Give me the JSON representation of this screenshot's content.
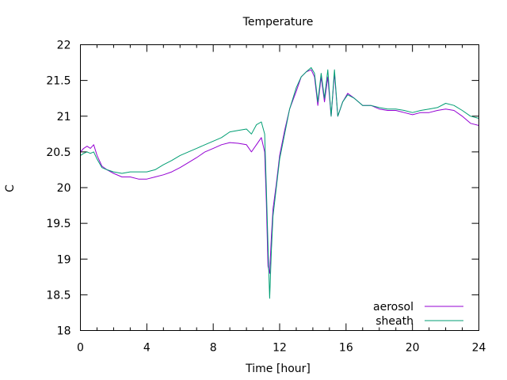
{
  "chart_data": {
    "type": "line",
    "title": "Temperature",
    "xlabel": "Time [hour]",
    "ylabel": "C",
    "xlim": [
      0,
      24
    ],
    "ylim": [
      18,
      22
    ],
    "x_ticks": [
      0,
      4,
      8,
      12,
      16,
      20,
      24
    ],
    "y_ticks": [
      18,
      18.5,
      19,
      19.5,
      20,
      20.5,
      21,
      21.5,
      22
    ],
    "x_tick_labels": [
      "0",
      "4",
      "8",
      "12",
      "16",
      "20",
      "24"
    ],
    "y_tick_labels": [
      "18",
      "18.5",
      "19",
      "19.5",
      "20",
      "20.5",
      "21",
      "21.5",
      "22"
    ],
    "grid": false,
    "legend_position": "bottom-right",
    "series": [
      {
        "name": "aerosol",
        "color": "#9400d3",
        "x": [
          0,
          0.2,
          0.4,
          0.6,
          0.8,
          1.0,
          1.3,
          1.6,
          2.0,
          2.5,
          3.0,
          3.5,
          4.0,
          4.5,
          5.0,
          5.5,
          6.0,
          6.5,
          7.0,
          7.5,
          8.0,
          8.5,
          9.0,
          9.5,
          10.0,
          10.3,
          10.6,
          10.9,
          11.1,
          11.2,
          11.3,
          11.4,
          11.5,
          11.6,
          11.8,
          12.0,
          12.3,
          12.6,
          13.0,
          13.3,
          13.6,
          13.9,
          14.1,
          14.3,
          14.5,
          14.7,
          14.9,
          15.1,
          15.3,
          15.5,
          15.8,
          16.1,
          16.5,
          17.0,
          17.5,
          18.0,
          18.5,
          19.0,
          19.5,
          20.0,
          20.5,
          21.0,
          21.5,
          22.0,
          22.5,
          23.0,
          23.5,
          24.0
        ],
        "y": [
          20.5,
          20.55,
          20.58,
          20.55,
          20.6,
          20.45,
          20.3,
          20.25,
          20.2,
          20.15,
          20.15,
          20.12,
          20.12,
          20.15,
          20.18,
          20.22,
          20.28,
          20.35,
          20.42,
          20.5,
          20.55,
          20.6,
          20.63,
          20.62,
          20.6,
          20.5,
          20.6,
          20.7,
          20.5,
          19.8,
          18.9,
          18.8,
          19.3,
          19.7,
          20.05,
          20.45,
          20.8,
          21.1,
          21.35,
          21.55,
          21.62,
          21.65,
          21.55,
          21.15,
          21.55,
          21.2,
          21.55,
          21.0,
          21.6,
          21.0,
          21.2,
          21.32,
          21.25,
          21.15,
          21.15,
          21.1,
          21.08,
          21.08,
          21.05,
          21.02,
          21.05,
          21.05,
          21.08,
          21.1,
          21.08,
          21.0,
          20.9,
          20.87
        ]
      },
      {
        "name": "sheath",
        "color": "#009e73",
        "x": [
          0,
          0.2,
          0.4,
          0.6,
          0.8,
          1.0,
          1.3,
          1.6,
          2.0,
          2.5,
          3.0,
          3.5,
          4.0,
          4.5,
          5.0,
          5.5,
          6.0,
          6.5,
          7.0,
          7.5,
          8.0,
          8.5,
          9.0,
          9.5,
          10.0,
          10.3,
          10.6,
          10.9,
          11.1,
          11.2,
          11.3,
          11.4,
          11.5,
          11.6,
          11.8,
          12.0,
          12.3,
          12.6,
          13.0,
          13.3,
          13.6,
          13.9,
          14.1,
          14.3,
          14.5,
          14.7,
          14.9,
          15.1,
          15.3,
          15.5,
          15.8,
          16.1,
          16.5,
          17.0,
          17.5,
          18.0,
          18.5,
          19.0,
          19.5,
          20.0,
          20.5,
          21.0,
          21.5,
          22.0,
          22.5,
          23.0,
          23.5,
          24.0
        ],
        "y": [
          20.45,
          20.48,
          20.5,
          20.48,
          20.5,
          20.4,
          20.28,
          20.25,
          20.22,
          20.2,
          20.22,
          20.22,
          20.22,
          20.25,
          20.32,
          20.38,
          20.45,
          20.5,
          20.55,
          20.6,
          20.65,
          20.7,
          20.78,
          20.8,
          20.82,
          20.75,
          20.88,
          20.92,
          20.75,
          20.0,
          19.2,
          18.45,
          19.1,
          19.6,
          20.0,
          20.4,
          20.75,
          21.1,
          21.4,
          21.55,
          21.62,
          21.68,
          21.6,
          21.2,
          21.6,
          21.25,
          21.65,
          21.0,
          21.65,
          21.0,
          21.2,
          21.3,
          21.25,
          21.15,
          21.15,
          21.12,
          21.1,
          21.1,
          21.08,
          21.05,
          21.08,
          21.1,
          21.12,
          21.18,
          21.15,
          21.08,
          21.0,
          20.97
        ]
      }
    ]
  }
}
